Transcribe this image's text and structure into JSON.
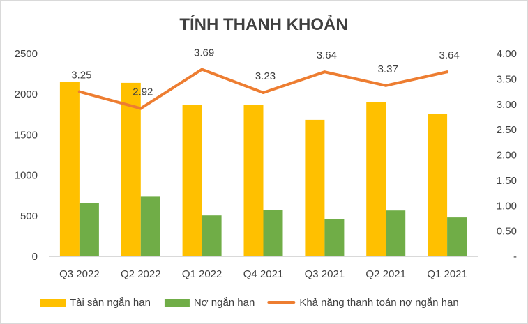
{
  "chart_data": {
    "type": "bar",
    "title": "TÍNH THANH KHOẢN",
    "categories": [
      "Q3 2022",
      "Q2 2022",
      "Q1 2022",
      "Q4 2021",
      "Q3 2021",
      "Q2 2021",
      "Q1 2021"
    ],
    "series": [
      {
        "name": "Tài sản ngắn hạn",
        "type": "bar",
        "axis": "left",
        "color": "#ffc000",
        "values": [
          2150,
          2140,
          1865,
          1865,
          1685,
          1905,
          1755
        ]
      },
      {
        "name": "Nợ ngắn hạn",
        "type": "bar",
        "axis": "left",
        "color": "#70ad47",
        "values": [
          660,
          735,
          505,
          575,
          460,
          565,
          480
        ]
      },
      {
        "name": "Khả năng thanh toán nợ ngắn hạn",
        "type": "line",
        "axis": "right",
        "color": "#ed7d31",
        "values": [
          3.25,
          2.92,
          3.69,
          3.23,
          3.64,
          3.37,
          3.64
        ],
        "labels": [
          "3.25",
          "2.92",
          "3.69",
          "3.23",
          "3.64",
          "3.37",
          "3.64"
        ]
      }
    ],
    "y_left": {
      "min": 0,
      "max": 2500,
      "ticks": [
        "0",
        "500",
        "1000",
        "1500",
        "2000",
        "2500"
      ]
    },
    "y_right": {
      "min": 0,
      "max": 4,
      "ticks": [
        "-",
        "0.50",
        "1.00",
        "1.50",
        "2.00",
        "2.50",
        "3.00",
        "3.50",
        "4.00"
      ]
    },
    "grid": false,
    "legend": "bottom"
  }
}
